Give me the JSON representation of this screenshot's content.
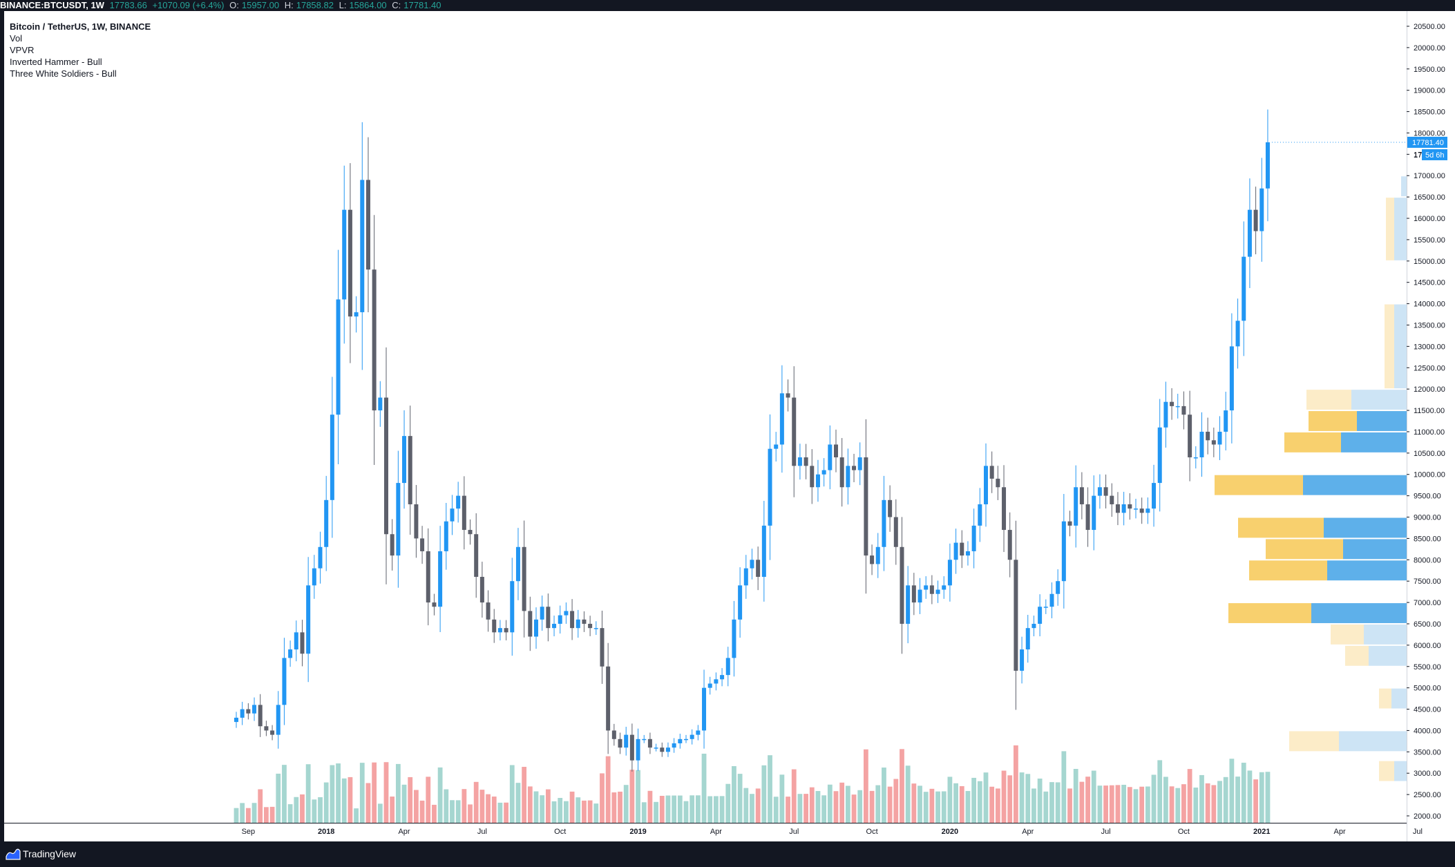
{
  "header": {
    "symbol": "BINANCE:BTCUSDT, 1W",
    "current": "17783.66",
    "change": "+1070.09 (+6.4%)",
    "o_label": "O:",
    "o_value": "15957.00",
    "h_label": "H:",
    "h_value": "17858.82",
    "l_label": "L:",
    "l_value": "15864.00",
    "c_label": "C:",
    "c_value": "17781.40"
  },
  "legend": {
    "main": "Bitcoin / TetherUS, 1W, BINANCE",
    "ind1": "Vol",
    "ind2": "VPVR",
    "ind3": "Inverted Hammer - Bull",
    "ind4": "Three White Soldiers - Bull"
  },
  "price_tag": {
    "value": "17781.40",
    "countdown": "5d 6h",
    "partial_label": "17"
  },
  "footer": {
    "brand": "TradingView"
  },
  "colors": {
    "up": "#2196f3",
    "down": "#5d606b",
    "vol_up": "#a5d6d0",
    "vol_down": "#f4a3a3",
    "vpvr_up_strong": "#5eb0ea",
    "vpvr_up_weak": "#cde4f5",
    "vpvr_down_strong": "#f8d06e",
    "vpvr_down_weak": "#fcecc8"
  },
  "chart_data": {
    "type": "candlestick",
    "timeframe": "1W",
    "ylim": [
      1800,
      20800
    ],
    "y_ticks": [
      "20500.00",
      "20000.00",
      "19500.00",
      "19000.00",
      "18500.00",
      "18000.00",
      "17500.00",
      "17000.00",
      "16500.00",
      "16000.00",
      "15500.00",
      "15000.00",
      "14500.00",
      "14000.00",
      "13500.00",
      "13000.00",
      "12500.00",
      "12000.00",
      "11500.00",
      "11000.00",
      "10500.00",
      "10000.00",
      "9500.00",
      "9000.00",
      "8500.00",
      "8000.00",
      "7500.00",
      "7000.00",
      "6500.00",
      "6000.00",
      "5500.00",
      "5000.00",
      "4500.00",
      "4000.00",
      "3500.00",
      "3000.00",
      "2500.00",
      "2000.00"
    ],
    "x_ticks": [
      {
        "label": "Sep",
        "week": 2
      },
      {
        "label": "2018",
        "week": 15,
        "bold": true
      },
      {
        "label": "Apr",
        "week": 28
      },
      {
        "label": "Jul",
        "week": 41
      },
      {
        "label": "Oct",
        "week": 54
      },
      {
        "label": "2019",
        "week": 67,
        "bold": true
      },
      {
        "label": "Apr",
        "week": 80
      },
      {
        "label": "Jul",
        "week": 93
      },
      {
        "label": "Oct",
        "week": 106
      },
      {
        "label": "2020",
        "week": 119,
        "bold": true
      },
      {
        "label": "Apr",
        "week": 132
      },
      {
        "label": "Jul",
        "week": 145
      },
      {
        "label": "Oct",
        "week": 158
      },
      {
        "label": "2021",
        "week": 171,
        "bold": true
      },
      {
        "label": "Apr",
        "week": 184
      },
      {
        "label": "Jul",
        "week": 197
      }
    ],
    "closes": [
      4300,
      4500,
      4400,
      4600,
      4100,
      4000,
      3900,
      4600,
      5700,
      5900,
      6300,
      5800,
      7400,
      7800,
      8300,
      9400,
      11400,
      14100,
      16200,
      13700,
      13800,
      16900,
      14800,
      11500,
      11800,
      8600,
      8100,
      9800,
      10900,
      9300,
      8500,
      8200,
      7000,
      6900,
      8200,
      8900,
      9200,
      9500,
      8700,
      8600,
      7600,
      7000,
      6600,
      6300,
      6400,
      6300,
      7500,
      8300,
      6800,
      6200,
      6600,
      6900,
      6400,
      6500,
      6700,
      6800,
      6400,
      6600,
      6500,
      6400,
      6400,
      5500,
      4000,
      3800,
      3600,
      3900,
      3300,
      3800,
      3800,
      3600,
      3600,
      3500,
      3600,
      3700,
      3800,
      3800,
      3900,
      4000,
      5000,
      5100,
      5200,
      5300,
      5700,
      6600,
      7400,
      7800,
      8000,
      7600,
      8800,
      10600,
      10700,
      11900,
      11800,
      10200,
      10400,
      10200,
      9700,
      10000,
      10100,
      10700,
      10400,
      9700,
      10200,
      10100,
      10400,
      8100,
      7900,
      8300,
      9400,
      9000,
      8300,
      6500,
      7400,
      7000,
      7300,
      7400,
      7200,
      7300,
      7400,
      8000,
      8400,
      8100,
      8200,
      8800,
      9300,
      10200,
      9900,
      9700,
      8700,
      8000,
      5400,
      5900,
      6400,
      6500,
      6900,
      6900,
      7200,
      7500,
      8900,
      8800,
      9700,
      9300,
      8700,
      9500,
      9700,
      9500,
      9300,
      9100,
      9300,
      9200,
      9200,
      9100,
      9200,
      9800,
      11100,
      11700,
      11600,
      11600,
      11400,
      10400,
      10400,
      11000,
      10800,
      10700,
      11000,
      11500,
      13000,
      13600,
      15100,
      16200,
      15700,
      16700,
      17781
    ]
  }
}
